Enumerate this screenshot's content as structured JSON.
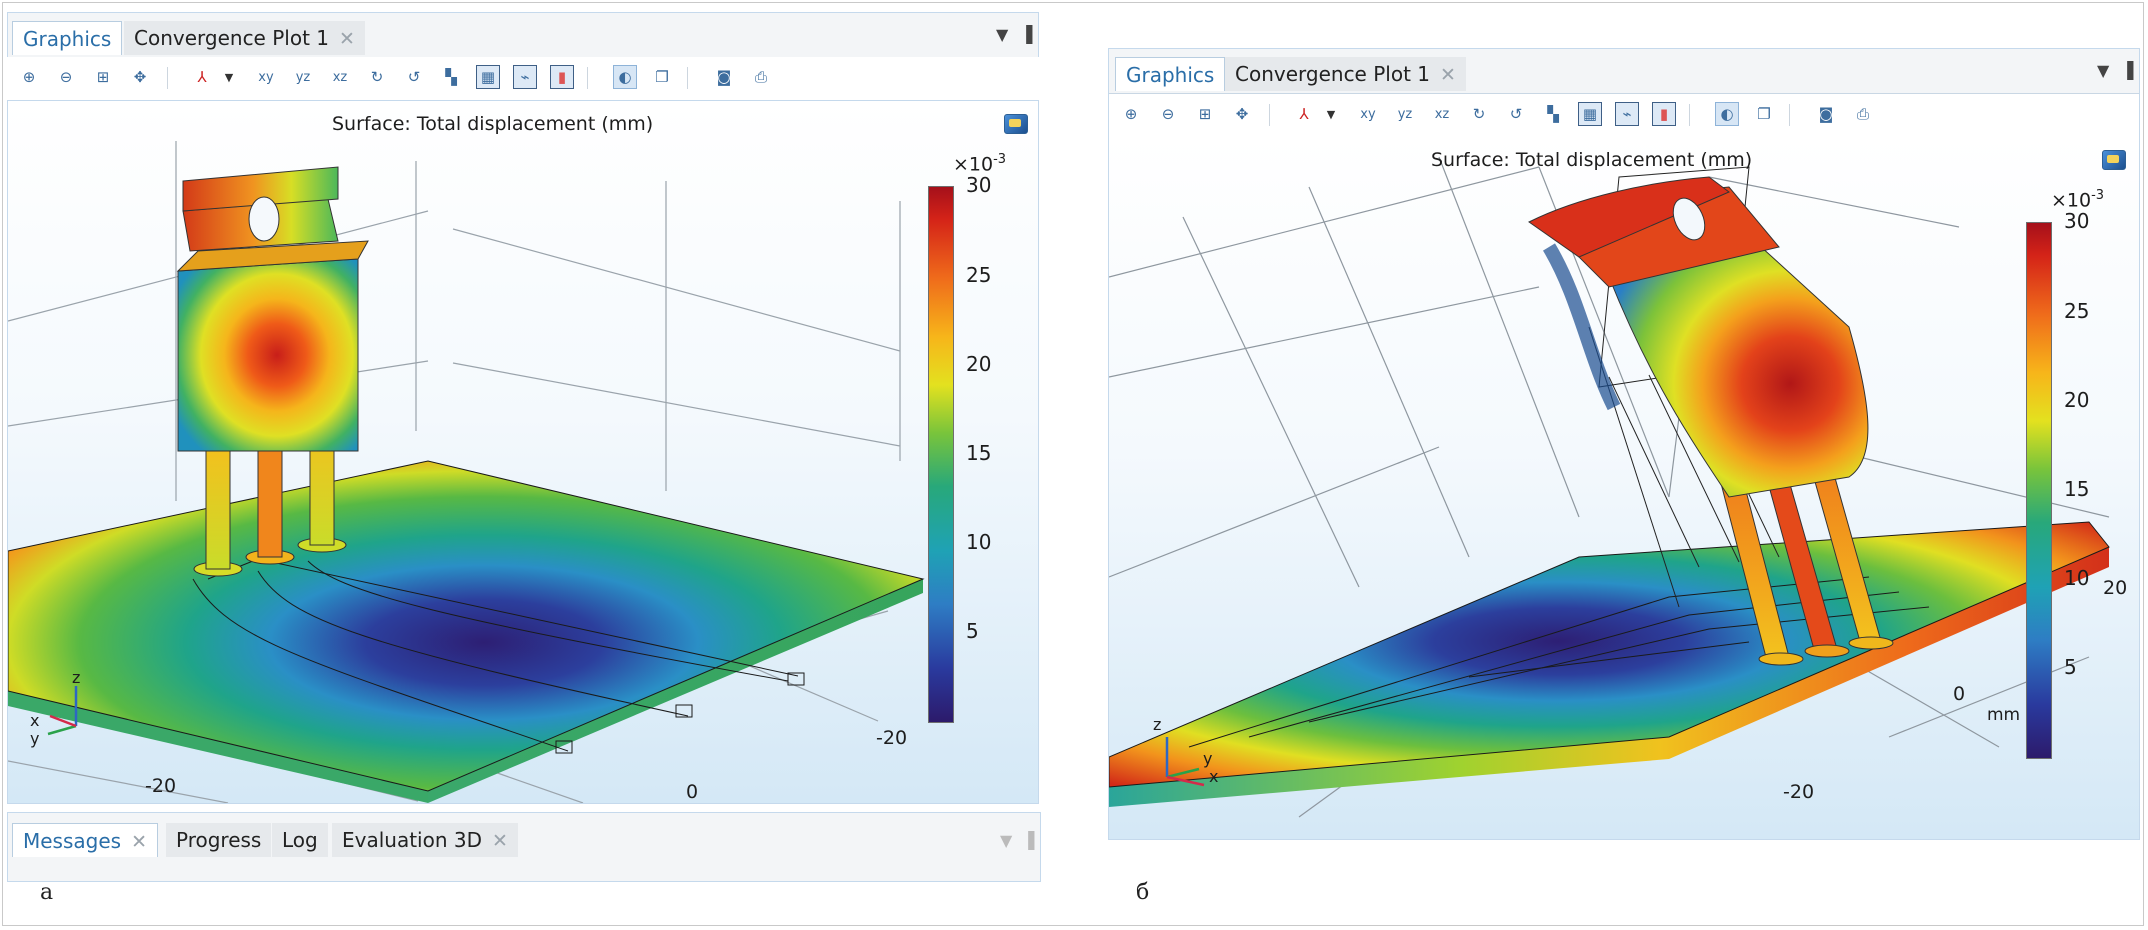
{
  "panel_a": {
    "tabs": [
      {
        "label": "Graphics",
        "active": true
      },
      {
        "label": "Convergence Plot 1",
        "active": false,
        "close": "✕"
      }
    ],
    "plot_title": "Surface: Total displacement (mm)",
    "colorbar": {
      "exponent": "×10",
      "exponent_power": "-3",
      "ticks": [
        "30",
        "25",
        "20",
        "15",
        "10",
        "5"
      ]
    },
    "axis_labels": [
      "-20",
      "0",
      "-20"
    ],
    "triad": {
      "x": "x",
      "y": "y",
      "z": "z"
    },
    "messages_tabs": [
      {
        "label": "Messages",
        "active": true,
        "close": "✕"
      },
      {
        "label": "Progress",
        "active": false
      },
      {
        "label": "Log",
        "active": false
      },
      {
        "label": "Evaluation 3D",
        "active": false,
        "close": "✕"
      }
    ],
    "caption": "а"
  },
  "panel_b": {
    "tabs": [
      {
        "label": "Graphics",
        "active": true
      },
      {
        "label": "Convergence Plot 1",
        "active": false,
        "close": "✕"
      }
    ],
    "plot_title": "Surface: Total displacement (mm)",
    "colorbar": {
      "exponent": "×10",
      "exponent_power": "-3",
      "ticks": [
        "30",
        "25",
        "20",
        "15",
        "10",
        "5"
      ],
      "unit": "mm"
    },
    "axis_labels": [
      "20",
      "0",
      "-20"
    ],
    "triad": {
      "x": "x",
      "y": "y",
      "z": "z"
    },
    "caption": "б"
  },
  "toolbar_icons": [
    "zoom-in",
    "zoom-out",
    "zoom-box",
    "zoom-extents",
    "axis-view",
    "view-xy",
    "view-yz",
    "view-xz",
    "rotate-cw",
    "rotate-ccw",
    "go-to-default-view",
    "show-grid",
    "show-axis-orientation",
    "show-legend",
    "transparency",
    "scene-light",
    "snapshot",
    "print"
  ],
  "toolbar_text": {
    "xy": "xy",
    "yz": "yz",
    "xz": "xz"
  },
  "colors": {
    "accent": "#2a6ea8",
    "viewport_bottom": "#d4e8f6",
    "border": "#c5d9ec"
  }
}
